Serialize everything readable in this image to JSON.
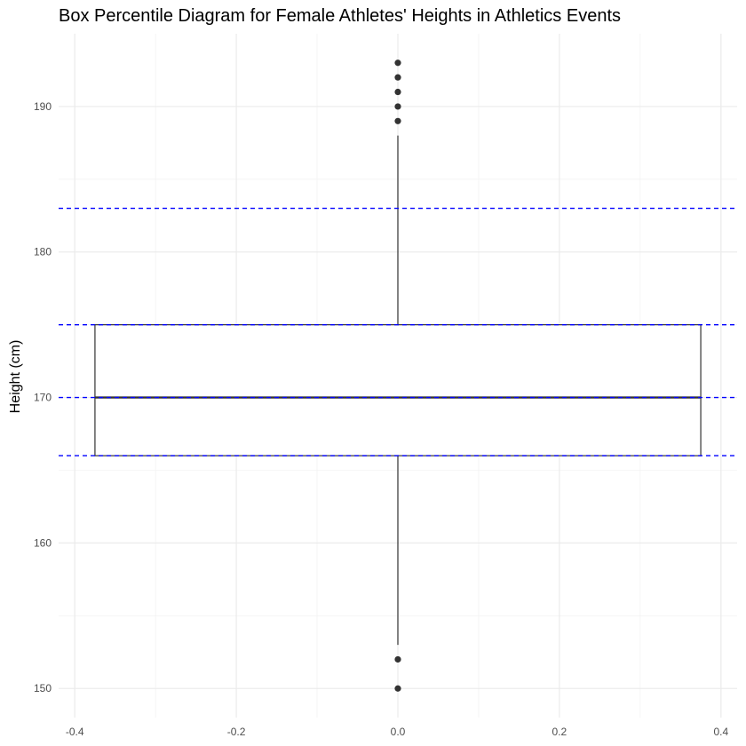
{
  "chart_data": {
    "type": "box",
    "title": "Box Percentile Diagram for Female Athletes' Heights in Athletics Events",
    "xlabel": "",
    "ylabel": "Height (cm)",
    "xlim": [
      -0.42,
      0.42
    ],
    "ylim": [
      148,
      195
    ],
    "x_ticks": [
      -0.4,
      -0.2,
      0.0,
      0.2,
      0.4
    ],
    "x_tick_labels": [
      "-0.4",
      "-0.2",
      "0.0",
      "0.2",
      "0.4"
    ],
    "y_ticks": [
      150,
      160,
      170,
      180,
      190
    ],
    "y_tick_labels": [
      "150",
      "160",
      "170",
      "180",
      "190"
    ],
    "grid": true,
    "box": {
      "x_center": 0.0,
      "x_left": -0.375,
      "x_right": 0.375,
      "q1": 166,
      "median": 170,
      "q3": 175,
      "whisker_low": 153,
      "whisker_high": 188,
      "outliers": [
        150,
        152,
        189,
        190,
        191,
        192,
        193
      ]
    },
    "reference_lines": [
      {
        "y": 166,
        "color": "#0000ff",
        "style": "dashed"
      },
      {
        "y": 170,
        "color": "#0000ff",
        "style": "dashed"
      },
      {
        "y": 175,
        "color": "#0000ff",
        "style": "dashed"
      },
      {
        "y": 183,
        "color": "#0000ff",
        "style": "dashed"
      }
    ],
    "colors": {
      "grid_major": "#ebebeb",
      "grid_minor": "#f3f3f3",
      "box_line": "#333333",
      "outlier": "#333333"
    }
  }
}
